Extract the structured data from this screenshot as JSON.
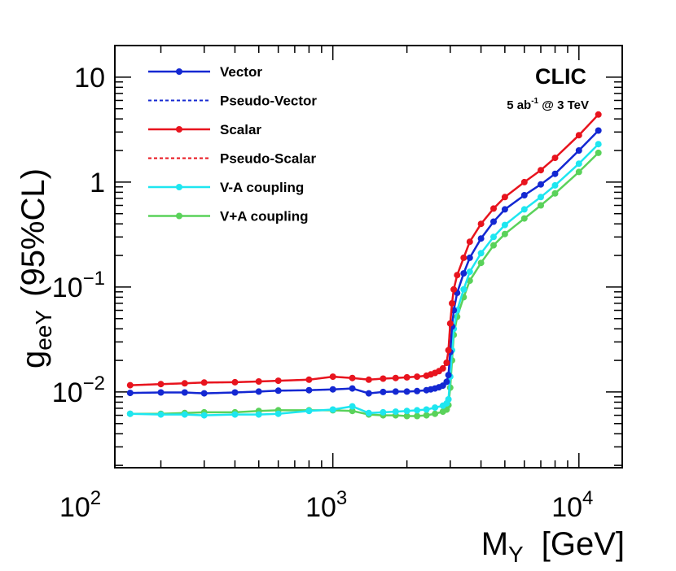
{
  "chart_data": {
    "type": "line",
    "title": "",
    "xlabel": {
      "main": "M",
      "sub": "Y",
      "unit": "[GeV]"
    },
    "ylabel": {
      "main": "g",
      "sub": "eeY",
      "rest": "(95%CL)"
    },
    "xscale": "log",
    "yscale": "log",
    "xlim": [
      130,
      15000
    ],
    "ylim": [
      0.0019,
      20
    ],
    "xticks": [
      {
        "value": 100,
        "base": "10",
        "exp": "2"
      },
      {
        "value": 1000,
        "base": "10",
        "exp": "3"
      },
      {
        "value": 10000,
        "base": "10",
        "exp": "4"
      }
    ],
    "yticks": [
      {
        "value": 0.01,
        "base": "10",
        "exp": "−2"
      },
      {
        "value": 0.1,
        "base": "10",
        "exp": "−1"
      },
      {
        "value": 1,
        "base": "1",
        "exp": ""
      },
      {
        "value": 10,
        "base": "10",
        "exp": ""
      }
    ],
    "experiment_label": "CLIC",
    "lumi_label": {
      "pre": "5 ab",
      "sup": "-1",
      "post": " @ 3 TeV"
    },
    "legend_position": "top-left",
    "series": [
      {
        "name": "Vector",
        "color": "#1428d2",
        "style": "solid",
        "markers": true,
        "x": [
          150,
          200,
          250,
          300,
          400,
          500,
          600,
          800,
          1000,
          1200,
          1400,
          1600,
          1800,
          2000,
          2200,
          2400,
          2500,
          2600,
          2700,
          2800,
          2900,
          2950,
          3000,
          3050,
          3100,
          3200,
          3400,
          3600,
          4000,
          4500,
          5000,
          6000,
          7000,
          8000,
          10000,
          12000
        ],
        "y": [
          0.0098,
          0.0099,
          0.0099,
          0.0097,
          0.0099,
          0.0101,
          0.0103,
          0.0104,
          0.0106,
          0.0108,
          0.0097,
          0.01,
          0.0101,
          0.0101,
          0.0102,
          0.0104,
          0.0106,
          0.0108,
          0.0111,
          0.0115,
          0.0125,
          0.0145,
          0.024,
          0.042,
          0.06,
          0.088,
          0.135,
          0.19,
          0.29,
          0.42,
          0.55,
          0.75,
          0.95,
          1.2,
          2.0,
          3.1
        ]
      },
      {
        "name": "Pseudo-Vector",
        "color": "#1428d2",
        "style": "dashed",
        "markers": false,
        "x": [
          150,
          200,
          250,
          300,
          400,
          500,
          600,
          800,
          1000,
          1200,
          1400,
          1600,
          1800,
          2000,
          2200,
          2400,
          2500,
          2600,
          2700,
          2800,
          2900,
          2950,
          3000,
          3050,
          3100,
          3200,
          3400,
          3600,
          4000,
          4500,
          5000,
          6000,
          7000,
          8000,
          10000,
          12000
        ],
        "y": [
          0.0098,
          0.0099,
          0.0099,
          0.0097,
          0.0099,
          0.0101,
          0.0103,
          0.0104,
          0.0106,
          0.0108,
          0.0097,
          0.01,
          0.0101,
          0.0101,
          0.0102,
          0.0104,
          0.0106,
          0.0108,
          0.0111,
          0.0115,
          0.0125,
          0.0145,
          0.024,
          0.042,
          0.06,
          0.088,
          0.135,
          0.19,
          0.29,
          0.42,
          0.55,
          0.75,
          0.95,
          1.2,
          2.0,
          3.1
        ]
      },
      {
        "name": "Scalar",
        "color": "#e8141e",
        "style": "solid",
        "markers": true,
        "x": [
          150,
          200,
          250,
          300,
          400,
          500,
          600,
          800,
          1000,
          1200,
          1400,
          1600,
          1800,
          2000,
          2200,
          2400,
          2500,
          2600,
          2700,
          2800,
          2900,
          2950,
          3000,
          3050,
          3100,
          3200,
          3400,
          3600,
          4000,
          4500,
          5000,
          6000,
          7000,
          8000,
          10000,
          12000
        ],
        "y": [
          0.0116,
          0.0119,
          0.0121,
          0.0123,
          0.0124,
          0.0126,
          0.0128,
          0.0131,
          0.014,
          0.0136,
          0.0131,
          0.0134,
          0.0136,
          0.0138,
          0.014,
          0.0143,
          0.0147,
          0.0152,
          0.0158,
          0.0168,
          0.019,
          0.025,
          0.045,
          0.07,
          0.095,
          0.13,
          0.19,
          0.27,
          0.4,
          0.56,
          0.72,
          1.0,
          1.3,
          1.7,
          2.8,
          4.4
        ]
      },
      {
        "name": "Pseudo-Scalar",
        "color": "#e8141e",
        "style": "dashed",
        "markers": false,
        "x": [
          150,
          200,
          250,
          300,
          400,
          500,
          600,
          800,
          1000,
          1200,
          1400,
          1600,
          1800,
          2000,
          2200,
          2400,
          2500,
          2600,
          2700,
          2800,
          2900,
          2950,
          3000,
          3050,
          3100,
          3200,
          3400,
          3600,
          4000,
          4500,
          5000,
          6000,
          7000,
          8000,
          10000,
          12000
        ],
        "y": [
          0.0116,
          0.0119,
          0.0121,
          0.0123,
          0.0124,
          0.0126,
          0.0128,
          0.0131,
          0.014,
          0.0136,
          0.0131,
          0.0134,
          0.0136,
          0.0138,
          0.014,
          0.0143,
          0.0147,
          0.0152,
          0.0158,
          0.0168,
          0.019,
          0.025,
          0.045,
          0.07,
          0.095,
          0.13,
          0.19,
          0.27,
          0.4,
          0.56,
          0.72,
          1.0,
          1.3,
          1.7,
          2.8,
          4.4
        ]
      },
      {
        "name": "V-A coupling",
        "color": "#1ee6f0",
        "style": "solid",
        "markers": true,
        "x": [
          150,
          200,
          250,
          300,
          400,
          500,
          600,
          800,
          1000,
          1200,
          1400,
          1600,
          1800,
          2000,
          2200,
          2400,
          2600,
          2800,
          2900,
          2950,
          3000,
          3050,
          3100,
          3200,
          3400,
          3600,
          4000,
          4500,
          5000,
          6000,
          7000,
          8000,
          10000,
          12000
        ],
        "y": [
          0.0062,
          0.0061,
          0.0061,
          0.006,
          0.0061,
          0.0061,
          0.0062,
          0.0066,
          0.0068,
          0.0073,
          0.0063,
          0.0064,
          0.0065,
          0.0066,
          0.0067,
          0.0068,
          0.0071,
          0.0074,
          0.0078,
          0.0085,
          0.014,
          0.025,
          0.04,
          0.06,
          0.095,
          0.14,
          0.21,
          0.3,
          0.39,
          0.55,
          0.72,
          0.93,
          1.5,
          2.3
        ]
      },
      {
        "name": "V+A coupling",
        "color": "#5ad25a",
        "style": "solid",
        "markers": true,
        "x": [
          150,
          200,
          250,
          300,
          400,
          500,
          600,
          800,
          1000,
          1200,
          1400,
          1600,
          1800,
          2000,
          2200,
          2400,
          2600,
          2800,
          2900,
          2950,
          3000,
          3050,
          3100,
          3200,
          3400,
          3600,
          4000,
          4500,
          5000,
          6000,
          7000,
          8000,
          10000,
          12000
        ],
        "y": [
          0.0062,
          0.0062,
          0.0063,
          0.0064,
          0.0064,
          0.0066,
          0.0067,
          0.0067,
          0.0067,
          0.0066,
          0.0061,
          0.006,
          0.006,
          0.0059,
          0.0059,
          0.006,
          0.0062,
          0.0065,
          0.0068,
          0.0075,
          0.011,
          0.02,
          0.035,
          0.052,
          0.08,
          0.115,
          0.17,
          0.25,
          0.32,
          0.45,
          0.6,
          0.78,
          1.25,
          1.9
        ]
      }
    ]
  }
}
